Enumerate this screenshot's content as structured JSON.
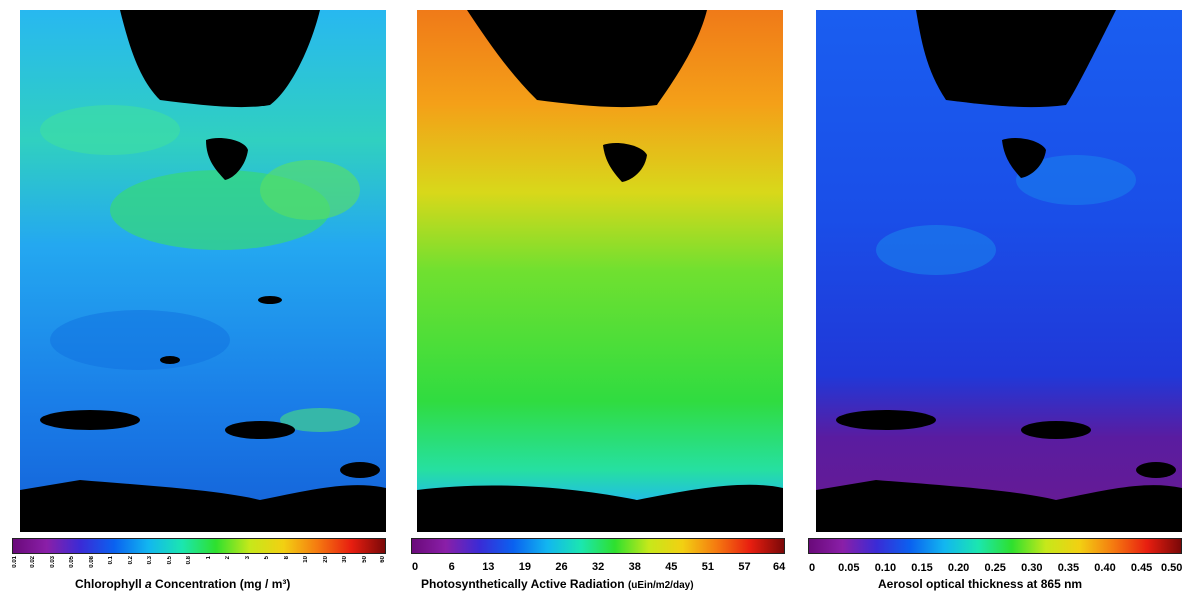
{
  "panels": [
    {
      "title_prefix": "Chlorophyll ",
      "title_italic": "a",
      "title_suffix": " Concentration",
      "units": "(mg / m³)",
      "ticks": [
        "0.01",
        "0.02",
        "0.03",
        "0.05",
        "0.08",
        "0.1",
        "0.2",
        "0.3",
        "0.5",
        "0.8",
        "1",
        "2",
        "3",
        "5",
        "8",
        "10",
        "20",
        "30",
        "50",
        "60"
      ]
    },
    {
      "title": "Photosynthetically Active Radiation",
      "units": "(uEin/m2/day)",
      "ticks": [
        "0",
        "6",
        "13",
        "19",
        "26",
        "32",
        "38",
        "45",
        "51",
        "57",
        "64"
      ]
    },
    {
      "title": "Aerosol optical thickness at 865 nm",
      "ticks": [
        "0",
        "0.05",
        "0.10",
        "0.15",
        "0.20",
        "0.25",
        "0.30",
        "0.35",
        "0.40",
        "0.45",
        "0.50"
      ]
    }
  ],
  "colors": {
    "land": "#000000",
    "rainbow": [
      "#6a0a7a",
      "#8a1fa8",
      "#3a2bd6",
      "#0a62f0",
      "#12b6f0",
      "#1be6b0",
      "#2ee02e",
      "#c6e81a",
      "#f2d012",
      "#f57a10",
      "#e81e10",
      "#7a0808"
    ]
  }
}
